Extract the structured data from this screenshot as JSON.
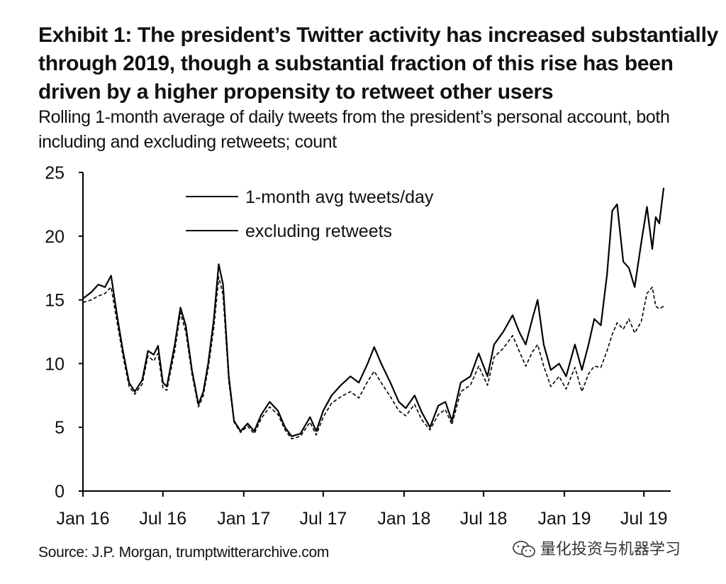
{
  "title": "Exhibit 1: The president’s Twitter activity has increased substantially through 2019, though a substantial fraction of this rise has been driven by a higher propensity to retweet other users",
  "subtitle": "Rolling 1-month average of daily tweets from the president’s personal account, both including and excluding retweets; count",
  "source": "Source: J.P. Morgan, trumptwitterarchive.com",
  "watermark": "量化投资与机器学习",
  "watermark_icon": "wechat-icon",
  "chart_data": {
    "type": "line",
    "title": "",
    "xlabel": "",
    "ylabel": "",
    "ylim": [
      0,
      25
    ],
    "yticks": [
      0,
      5,
      10,
      15,
      20,
      25
    ],
    "xlim": [
      "2016-01-01",
      "2019-08-31"
    ],
    "xticks": [
      {
        "label": "Jan 16",
        "date": "2016-01-01"
      },
      {
        "label": "Jul 16",
        "date": "2016-07-01"
      },
      {
        "label": "Jan 17",
        "date": "2017-01-01"
      },
      {
        "label": "Jul 17",
        "date": "2017-07-01"
      },
      {
        "label": "Jan 18",
        "date": "2018-01-01"
      },
      {
        "label": "Jul 18",
        "date": "2018-07-01"
      },
      {
        "label": "Jan 19",
        "date": "2019-01-01"
      },
      {
        "label": "Jul 19",
        "date": "2019-07-01"
      }
    ],
    "grid": false,
    "legend_position": "top-left",
    "series": [
      {
        "name": "1-month avg tweets/day",
        "color": "#000000",
        "style": "solid",
        "points": [
          [
            "2016-01-01",
            15.1
          ],
          [
            "2016-01-20",
            15.6
          ],
          [
            "2016-02-05",
            16.2
          ],
          [
            "2016-02-20",
            16.0
          ],
          [
            "2016-03-05",
            16.9
          ],
          [
            "2016-03-20",
            13.5
          ],
          [
            "2016-04-01",
            11.0
          ],
          [
            "2016-04-15",
            8.5
          ],
          [
            "2016-04-28",
            7.8
          ],
          [
            "2016-05-15",
            8.7
          ],
          [
            "2016-05-28",
            11.0
          ],
          [
            "2016-06-10",
            10.7
          ],
          [
            "2016-06-20",
            11.4
          ],
          [
            "2016-07-01",
            8.5
          ],
          [
            "2016-07-10",
            8.2
          ],
          [
            "2016-07-28",
            11.5
          ],
          [
            "2016-08-10",
            14.4
          ],
          [
            "2016-08-22",
            13.0
          ],
          [
            "2016-09-05",
            9.5
          ],
          [
            "2016-09-20",
            6.8
          ],
          [
            "2016-10-01",
            7.8
          ],
          [
            "2016-10-12",
            10.0
          ],
          [
            "2016-10-25",
            13.5
          ],
          [
            "2016-11-05",
            17.8
          ],
          [
            "2016-11-15",
            16.2
          ],
          [
            "2016-11-28",
            9.0
          ],
          [
            "2016-12-10",
            5.5
          ],
          [
            "2016-12-25",
            4.7
          ],
          [
            "2017-01-10",
            5.3
          ],
          [
            "2017-01-25",
            4.7
          ],
          [
            "2017-02-10",
            6.0
          ],
          [
            "2017-03-01",
            7.0
          ],
          [
            "2017-03-20",
            6.3
          ],
          [
            "2017-04-05",
            5.0
          ],
          [
            "2017-04-20",
            4.3
          ],
          [
            "2017-05-10",
            4.5
          ],
          [
            "2017-06-01",
            5.8
          ],
          [
            "2017-06-15",
            4.7
          ],
          [
            "2017-07-01",
            6.3
          ],
          [
            "2017-07-20",
            7.5
          ],
          [
            "2017-08-10",
            8.3
          ],
          [
            "2017-09-01",
            9.0
          ],
          [
            "2017-09-20",
            8.5
          ],
          [
            "2017-10-10",
            10.0
          ],
          [
            "2017-10-25",
            11.3
          ],
          [
            "2017-11-10",
            10.0
          ],
          [
            "2017-12-01",
            8.5
          ],
          [
            "2017-12-20",
            7.0
          ],
          [
            "2018-01-05",
            6.5
          ],
          [
            "2018-01-25",
            7.5
          ],
          [
            "2018-02-10",
            6.2
          ],
          [
            "2018-03-01",
            5.0
          ],
          [
            "2018-03-20",
            6.7
          ],
          [
            "2018-04-05",
            7.0
          ],
          [
            "2018-04-20",
            5.5
          ],
          [
            "2018-05-10",
            8.5
          ],
          [
            "2018-06-01",
            9.0
          ],
          [
            "2018-06-20",
            10.8
          ],
          [
            "2018-07-10",
            9.0
          ],
          [
            "2018-07-25",
            11.5
          ],
          [
            "2018-08-15",
            12.5
          ],
          [
            "2018-09-05",
            13.8
          ],
          [
            "2018-09-20",
            12.5
          ],
          [
            "2018-10-05",
            11.5
          ],
          [
            "2018-10-20",
            13.5
          ],
          [
            "2018-11-01",
            15.0
          ],
          [
            "2018-11-15",
            11.5
          ],
          [
            "2018-12-01",
            9.5
          ],
          [
            "2018-12-20",
            10.0
          ],
          [
            "2019-01-05",
            9.0
          ],
          [
            "2019-01-25",
            11.5
          ],
          [
            "2019-02-10",
            9.5
          ],
          [
            "2019-02-25",
            11.5
          ],
          [
            "2019-03-10",
            13.5
          ],
          [
            "2019-03-25",
            13.0
          ],
          [
            "2019-04-08",
            17.0
          ],
          [
            "2019-04-20",
            22.0
          ],
          [
            "2019-05-01",
            22.5
          ],
          [
            "2019-05-15",
            18.0
          ],
          [
            "2019-05-28",
            17.5
          ],
          [
            "2019-06-10",
            16.0
          ],
          [
            "2019-06-25",
            19.5
          ],
          [
            "2019-07-08",
            22.3
          ],
          [
            "2019-07-20",
            19.0
          ],
          [
            "2019-07-28",
            21.5
          ],
          [
            "2019-08-05",
            21.0
          ],
          [
            "2019-08-15",
            23.8
          ]
        ]
      },
      {
        "name": "excluding retweets",
        "color": "#000000",
        "style": "dashed",
        "points": [
          [
            "2016-01-01",
            14.8
          ],
          [
            "2016-01-20",
            15.0
          ],
          [
            "2016-02-05",
            15.3
          ],
          [
            "2016-02-20",
            15.5
          ],
          [
            "2016-03-05",
            16.0
          ],
          [
            "2016-03-20",
            13.0
          ],
          [
            "2016-04-01",
            10.6
          ],
          [
            "2016-04-15",
            8.2
          ],
          [
            "2016-04-28",
            7.6
          ],
          [
            "2016-05-15",
            8.4
          ],
          [
            "2016-05-28",
            10.6
          ],
          [
            "2016-06-10",
            10.2
          ],
          [
            "2016-06-20",
            10.8
          ],
          [
            "2016-07-01",
            8.1
          ],
          [
            "2016-07-10",
            7.9
          ],
          [
            "2016-07-28",
            11.0
          ],
          [
            "2016-08-10",
            14.0
          ],
          [
            "2016-08-22",
            12.5
          ],
          [
            "2016-09-05",
            9.2
          ],
          [
            "2016-09-20",
            6.6
          ],
          [
            "2016-10-01",
            7.5
          ],
          [
            "2016-10-12",
            9.6
          ],
          [
            "2016-10-25",
            12.8
          ],
          [
            "2016-11-05",
            16.8
          ],
          [
            "2016-11-15",
            15.4
          ],
          [
            "2016-11-28",
            8.6
          ],
          [
            "2016-12-10",
            5.4
          ],
          [
            "2016-12-25",
            4.6
          ],
          [
            "2017-01-10",
            5.1
          ],
          [
            "2017-01-25",
            4.5
          ],
          [
            "2017-02-10",
            5.7
          ],
          [
            "2017-03-01",
            6.6
          ],
          [
            "2017-03-20",
            6.0
          ],
          [
            "2017-04-05",
            4.8
          ],
          [
            "2017-04-20",
            4.1
          ],
          [
            "2017-05-10",
            4.3
          ],
          [
            "2017-06-01",
            5.4
          ],
          [
            "2017-06-15",
            4.4
          ],
          [
            "2017-07-01",
            5.8
          ],
          [
            "2017-07-20",
            6.9
          ],
          [
            "2017-08-10",
            7.4
          ],
          [
            "2017-09-01",
            7.8
          ],
          [
            "2017-09-20",
            7.3
          ],
          [
            "2017-10-10",
            8.6
          ],
          [
            "2017-10-25",
            9.4
          ],
          [
            "2017-11-10",
            8.5
          ],
          [
            "2017-12-01",
            7.4
          ],
          [
            "2017-12-20",
            6.3
          ],
          [
            "2018-01-05",
            5.9
          ],
          [
            "2018-01-25",
            6.8
          ],
          [
            "2018-02-10",
            5.6
          ],
          [
            "2018-03-01",
            4.8
          ],
          [
            "2018-03-20",
            6.0
          ],
          [
            "2018-04-05",
            6.4
          ],
          [
            "2018-04-20",
            5.2
          ],
          [
            "2018-05-10",
            7.8
          ],
          [
            "2018-06-01",
            8.3
          ],
          [
            "2018-06-20",
            9.8
          ],
          [
            "2018-07-10",
            8.3
          ],
          [
            "2018-07-25",
            10.5
          ],
          [
            "2018-08-15",
            11.2
          ],
          [
            "2018-09-05",
            12.2
          ],
          [
            "2018-09-20",
            11.0
          ],
          [
            "2018-10-05",
            9.8
          ],
          [
            "2018-10-20",
            10.9
          ],
          [
            "2018-11-01",
            11.5
          ],
          [
            "2018-11-15",
            9.8
          ],
          [
            "2018-12-01",
            8.2
          ],
          [
            "2018-12-20",
            9.0
          ],
          [
            "2019-01-05",
            8.0
          ],
          [
            "2019-01-25",
            9.7
          ],
          [
            "2019-02-10",
            7.8
          ],
          [
            "2019-02-25",
            9.2
          ],
          [
            "2019-03-10",
            9.8
          ],
          [
            "2019-03-25",
            9.7
          ],
          [
            "2019-04-08",
            11.0
          ],
          [
            "2019-04-20",
            12.3
          ],
          [
            "2019-05-01",
            13.2
          ],
          [
            "2019-05-15",
            12.7
          ],
          [
            "2019-05-28",
            13.5
          ],
          [
            "2019-06-10",
            12.4
          ],
          [
            "2019-06-25",
            13.3
          ],
          [
            "2019-07-08",
            15.5
          ],
          [
            "2019-07-20",
            16.0
          ],
          [
            "2019-07-28",
            14.5
          ],
          [
            "2019-08-05",
            14.3
          ],
          [
            "2019-08-15",
            14.5
          ]
        ]
      }
    ]
  }
}
